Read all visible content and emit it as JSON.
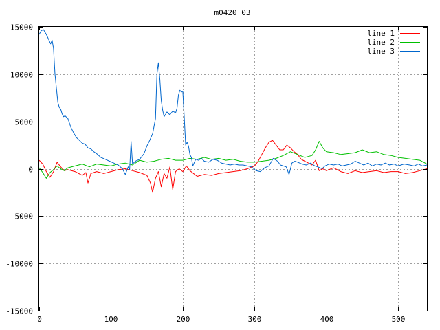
{
  "chart_data": {
    "type": "line",
    "title": "m0420_03",
    "xlabel": "",
    "ylabel": "",
    "xlim": [
      0,
      540
    ],
    "ylim": [
      -15000,
      15000
    ],
    "xticks": [
      0,
      100,
      200,
      300,
      400,
      500
    ],
    "yticks": [
      -15000,
      -10000,
      -5000,
      0,
      5000,
      10000,
      15000
    ],
    "grid": true,
    "legend_position": "top-right",
    "series": [
      {
        "name": "line 1",
        "color": "#ff0000",
        "points": [
          [
            0,
            900
          ],
          [
            5,
            500
          ],
          [
            10,
            -300
          ],
          [
            15,
            -900
          ],
          [
            20,
            -300
          ],
          [
            25,
            700
          ],
          [
            30,
            200
          ],
          [
            35,
            -200
          ],
          [
            40,
            -100
          ],
          [
            50,
            -300
          ],
          [
            60,
            -700
          ],
          [
            65,
            -400
          ],
          [
            68,
            -1500
          ],
          [
            72,
            -500
          ],
          [
            80,
            -300
          ],
          [
            90,
            -500
          ],
          [
            100,
            -300
          ],
          [
            110,
            -100
          ],
          [
            120,
            0
          ],
          [
            130,
            -200
          ],
          [
            140,
            -400
          ],
          [
            150,
            -700
          ],
          [
            155,
            -1500
          ],
          [
            158,
            -2500
          ],
          [
            162,
            -1000
          ],
          [
            166,
            -300
          ],
          [
            170,
            -1900
          ],
          [
            174,
            -500
          ],
          [
            178,
            -1000
          ],
          [
            182,
            200
          ],
          [
            186,
            -2200
          ],
          [
            190,
            -300
          ],
          [
            195,
            0
          ],
          [
            200,
            -300
          ],
          [
            205,
            300
          ],
          [
            210,
            -200
          ],
          [
            220,
            -800
          ],
          [
            230,
            -600
          ],
          [
            240,
            -700
          ],
          [
            250,
            -500
          ],
          [
            260,
            -400
          ],
          [
            270,
            -300
          ],
          [
            280,
            -200
          ],
          [
            290,
            0
          ],
          [
            300,
            300
          ],
          [
            305,
            800
          ],
          [
            310,
            1500
          ],
          [
            315,
            2200
          ],
          [
            320,
            2800
          ],
          [
            325,
            3000
          ],
          [
            330,
            2500
          ],
          [
            335,
            2000
          ],
          [
            340,
            2000
          ],
          [
            345,
            2500
          ],
          [
            350,
            2200
          ],
          [
            355,
            1800
          ],
          [
            360,
            1500
          ],
          [
            365,
            1000
          ],
          [
            370,
            800
          ],
          [
            375,
            600
          ],
          [
            380,
            400
          ],
          [
            385,
            900
          ],
          [
            390,
            -200
          ],
          [
            395,
            0
          ],
          [
            400,
            -200
          ],
          [
            410,
            100
          ],
          [
            420,
            -300
          ],
          [
            430,
            -500
          ],
          [
            440,
            -200
          ],
          [
            450,
            -400
          ],
          [
            460,
            -300
          ],
          [
            470,
            -200
          ],
          [
            480,
            -400
          ],
          [
            490,
            -300
          ],
          [
            500,
            -300
          ],
          [
            510,
            -500
          ],
          [
            520,
            -400
          ],
          [
            530,
            -200
          ],
          [
            540,
            0
          ]
        ]
      },
      {
        "name": "line 2",
        "color": "#00c000",
        "points": [
          [
            0,
            100
          ],
          [
            5,
            -400
          ],
          [
            10,
            -1000
          ],
          [
            15,
            -400
          ],
          [
            20,
            -100
          ],
          [
            25,
            300
          ],
          [
            30,
            0
          ],
          [
            35,
            -200
          ],
          [
            40,
            100
          ],
          [
            50,
            300
          ],
          [
            60,
            500
          ],
          [
            70,
            200
          ],
          [
            80,
            500
          ],
          [
            90,
            400
          ],
          [
            100,
            300
          ],
          [
            110,
            500
          ],
          [
            120,
            600
          ],
          [
            130,
            400
          ],
          [
            140,
            900
          ],
          [
            150,
            700
          ],
          [
            160,
            800
          ],
          [
            170,
            1000
          ],
          [
            180,
            1100
          ],
          [
            190,
            900
          ],
          [
            200,
            900
          ],
          [
            210,
            1100
          ],
          [
            220,
            1000
          ],
          [
            230,
            1200
          ],
          [
            240,
            1000
          ],
          [
            250,
            1100
          ],
          [
            260,
            900
          ],
          [
            270,
            1000
          ],
          [
            280,
            800
          ],
          [
            290,
            700
          ],
          [
            300,
            700
          ],
          [
            310,
            800
          ],
          [
            320,
            900
          ],
          [
            330,
            1100
          ],
          [
            340,
            1400
          ],
          [
            350,
            1800
          ],
          [
            360,
            1500
          ],
          [
            370,
            1200
          ],
          [
            380,
            1400
          ],
          [
            385,
            2000
          ],
          [
            390,
            2900
          ],
          [
            395,
            2200
          ],
          [
            400,
            1800
          ],
          [
            410,
            1700
          ],
          [
            420,
            1500
          ],
          [
            430,
            1600
          ],
          [
            440,
            1700
          ],
          [
            450,
            2000
          ],
          [
            460,
            1700
          ],
          [
            470,
            1800
          ],
          [
            480,
            1500
          ],
          [
            490,
            1400
          ],
          [
            500,
            1200
          ],
          [
            510,
            1100
          ],
          [
            520,
            1000
          ],
          [
            530,
            900
          ],
          [
            540,
            500
          ]
        ]
      },
      {
        "name": "line 3",
        "color": "#0066cc",
        "points": [
          [
            0,
            14200
          ],
          [
            3,
            14600
          ],
          [
            6,
            14700
          ],
          [
            10,
            14200
          ],
          [
            13,
            13700
          ],
          [
            16,
            13200
          ],
          [
            18,
            13600
          ],
          [
            20,
            12700
          ],
          [
            22,
            10000
          ],
          [
            24,
            8500
          ],
          [
            26,
            7000
          ],
          [
            28,
            6500
          ],
          [
            30,
            6300
          ],
          [
            32,
            5800
          ],
          [
            34,
            5500
          ],
          [
            36,
            5600
          ],
          [
            40,
            5300
          ],
          [
            44,
            4400
          ],
          [
            48,
            3800
          ],
          [
            52,
            3300
          ],
          [
            56,
            3000
          ],
          [
            60,
            2700
          ],
          [
            64,
            2600
          ],
          [
            68,
            2200
          ],
          [
            72,
            2100
          ],
          [
            76,
            1800
          ],
          [
            80,
            1600
          ],
          [
            86,
            1200
          ],
          [
            92,
            1000
          ],
          [
            98,
            800
          ],
          [
            104,
            600
          ],
          [
            110,
            400
          ],
          [
            116,
            0
          ],
          [
            120,
            -600
          ],
          [
            124,
            200
          ],
          [
            126,
            -100
          ],
          [
            128,
            2900
          ],
          [
            130,
            500
          ],
          [
            134,
            800
          ],
          [
            140,
            1000
          ],
          [
            146,
            1600
          ],
          [
            150,
            2400
          ],
          [
            154,
            3000
          ],
          [
            158,
            3700
          ],
          [
            160,
            4500
          ],
          [
            162,
            5300
          ],
          [
            164,
            10000
          ],
          [
            166,
            11200
          ],
          [
            168,
            9500
          ],
          [
            170,
            7200
          ],
          [
            172,
            6200
          ],
          [
            174,
            5500
          ],
          [
            178,
            6000
          ],
          [
            182,
            5700
          ],
          [
            186,
            6100
          ],
          [
            190,
            5900
          ],
          [
            192,
            6400
          ],
          [
            194,
            7800
          ],
          [
            196,
            8300
          ],
          [
            198,
            8100
          ],
          [
            200,
            8200
          ],
          [
            202,
            5500
          ],
          [
            204,
            2500
          ],
          [
            206,
            2800
          ],
          [
            208,
            2400
          ],
          [
            210,
            1500
          ],
          [
            212,
            1200
          ],
          [
            214,
            300
          ],
          [
            218,
            1000
          ],
          [
            222,
            900
          ],
          [
            226,
            1100
          ],
          [
            230,
            800
          ],
          [
            236,
            700
          ],
          [
            242,
            1000
          ],
          [
            248,
            900
          ],
          [
            254,
            600
          ],
          [
            260,
            500
          ],
          [
            266,
            400
          ],
          [
            272,
            500
          ],
          [
            278,
            400
          ],
          [
            284,
            400
          ],
          [
            290,
            300
          ],
          [
            296,
            200
          ],
          [
            302,
            -200
          ],
          [
            308,
            -300
          ],
          [
            314,
            100
          ],
          [
            320,
            300
          ],
          [
            326,
            1100
          ],
          [
            332,
            800
          ],
          [
            336,
            400
          ],
          [
            340,
            300
          ],
          [
            344,
            200
          ],
          [
            348,
            -600
          ],
          [
            352,
            600
          ],
          [
            356,
            800
          ],
          [
            360,
            700
          ],
          [
            366,
            500
          ],
          [
            372,
            400
          ],
          [
            378,
            600
          ],
          [
            384,
            300
          ],
          [
            388,
            200
          ],
          [
            394,
            0
          ],
          [
            398,
            300
          ],
          [
            404,
            500
          ],
          [
            410,
            400
          ],
          [
            416,
            500
          ],
          [
            422,
            300
          ],
          [
            428,
            400
          ],
          [
            434,
            500
          ],
          [
            440,
            800
          ],
          [
            446,
            600
          ],
          [
            452,
            400
          ],
          [
            458,
            600
          ],
          [
            464,
            300
          ],
          [
            470,
            500
          ],
          [
            476,
            400
          ],
          [
            482,
            600
          ],
          [
            488,
            400
          ],
          [
            494,
            500
          ],
          [
            500,
            300
          ],
          [
            508,
            500
          ],
          [
            516,
            400
          ],
          [
            522,
            300
          ],
          [
            528,
            500
          ],
          [
            534,
            300
          ],
          [
            540,
            400
          ]
        ]
      }
    ]
  }
}
